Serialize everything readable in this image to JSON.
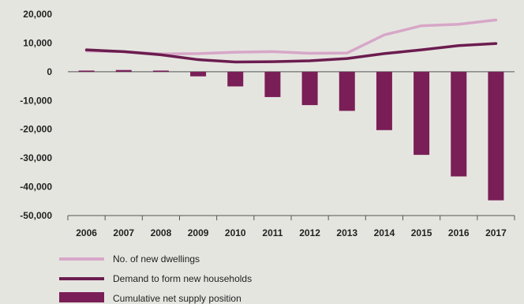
{
  "chart_data": {
    "type": "bar",
    "x": [
      "2006",
      "2007",
      "2008",
      "2009",
      "2010",
      "2011",
      "2012",
      "2013",
      "2014",
      "2015",
      "2016",
      "2017"
    ],
    "ylim": [
      -50000,
      20000
    ],
    "yticks": [
      20000,
      10000,
      0,
      -10000,
      -20000,
      -30000,
      -40000,
      -50000
    ],
    "ytick_labels": [
      "20,000",
      "10,000",
      "0",
      "-10,000",
      "-20,000",
      "-30,000",
      "-40,000",
      "-50,000"
    ],
    "grid": false,
    "legend_position": "bottom-left",
    "series": [
      {
        "name": "No. of new dwellings",
        "type": "line",
        "color": "#d7a7c7",
        "values": [
          7200,
          7000,
          6200,
          6300,
          6800,
          7000,
          6400,
          6500,
          12800,
          16000,
          16500,
          18000
        ]
      },
      {
        "name": "Demand to form new households",
        "type": "line",
        "color": "#6b1d4f",
        "values": [
          7600,
          7000,
          5900,
          4200,
          3400,
          3500,
          3800,
          4600,
          6300,
          7600,
          9100,
          9800
        ]
      },
      {
        "name": "Cumulative net supply position",
        "type": "bar",
        "color": "#7a1e57",
        "values": [
          400,
          600,
          400,
          -1600,
          -5100,
          -8800,
          -11600,
          -13600,
          -20300,
          -28900,
          -36400,
          -44700
        ]
      }
    ]
  }
}
